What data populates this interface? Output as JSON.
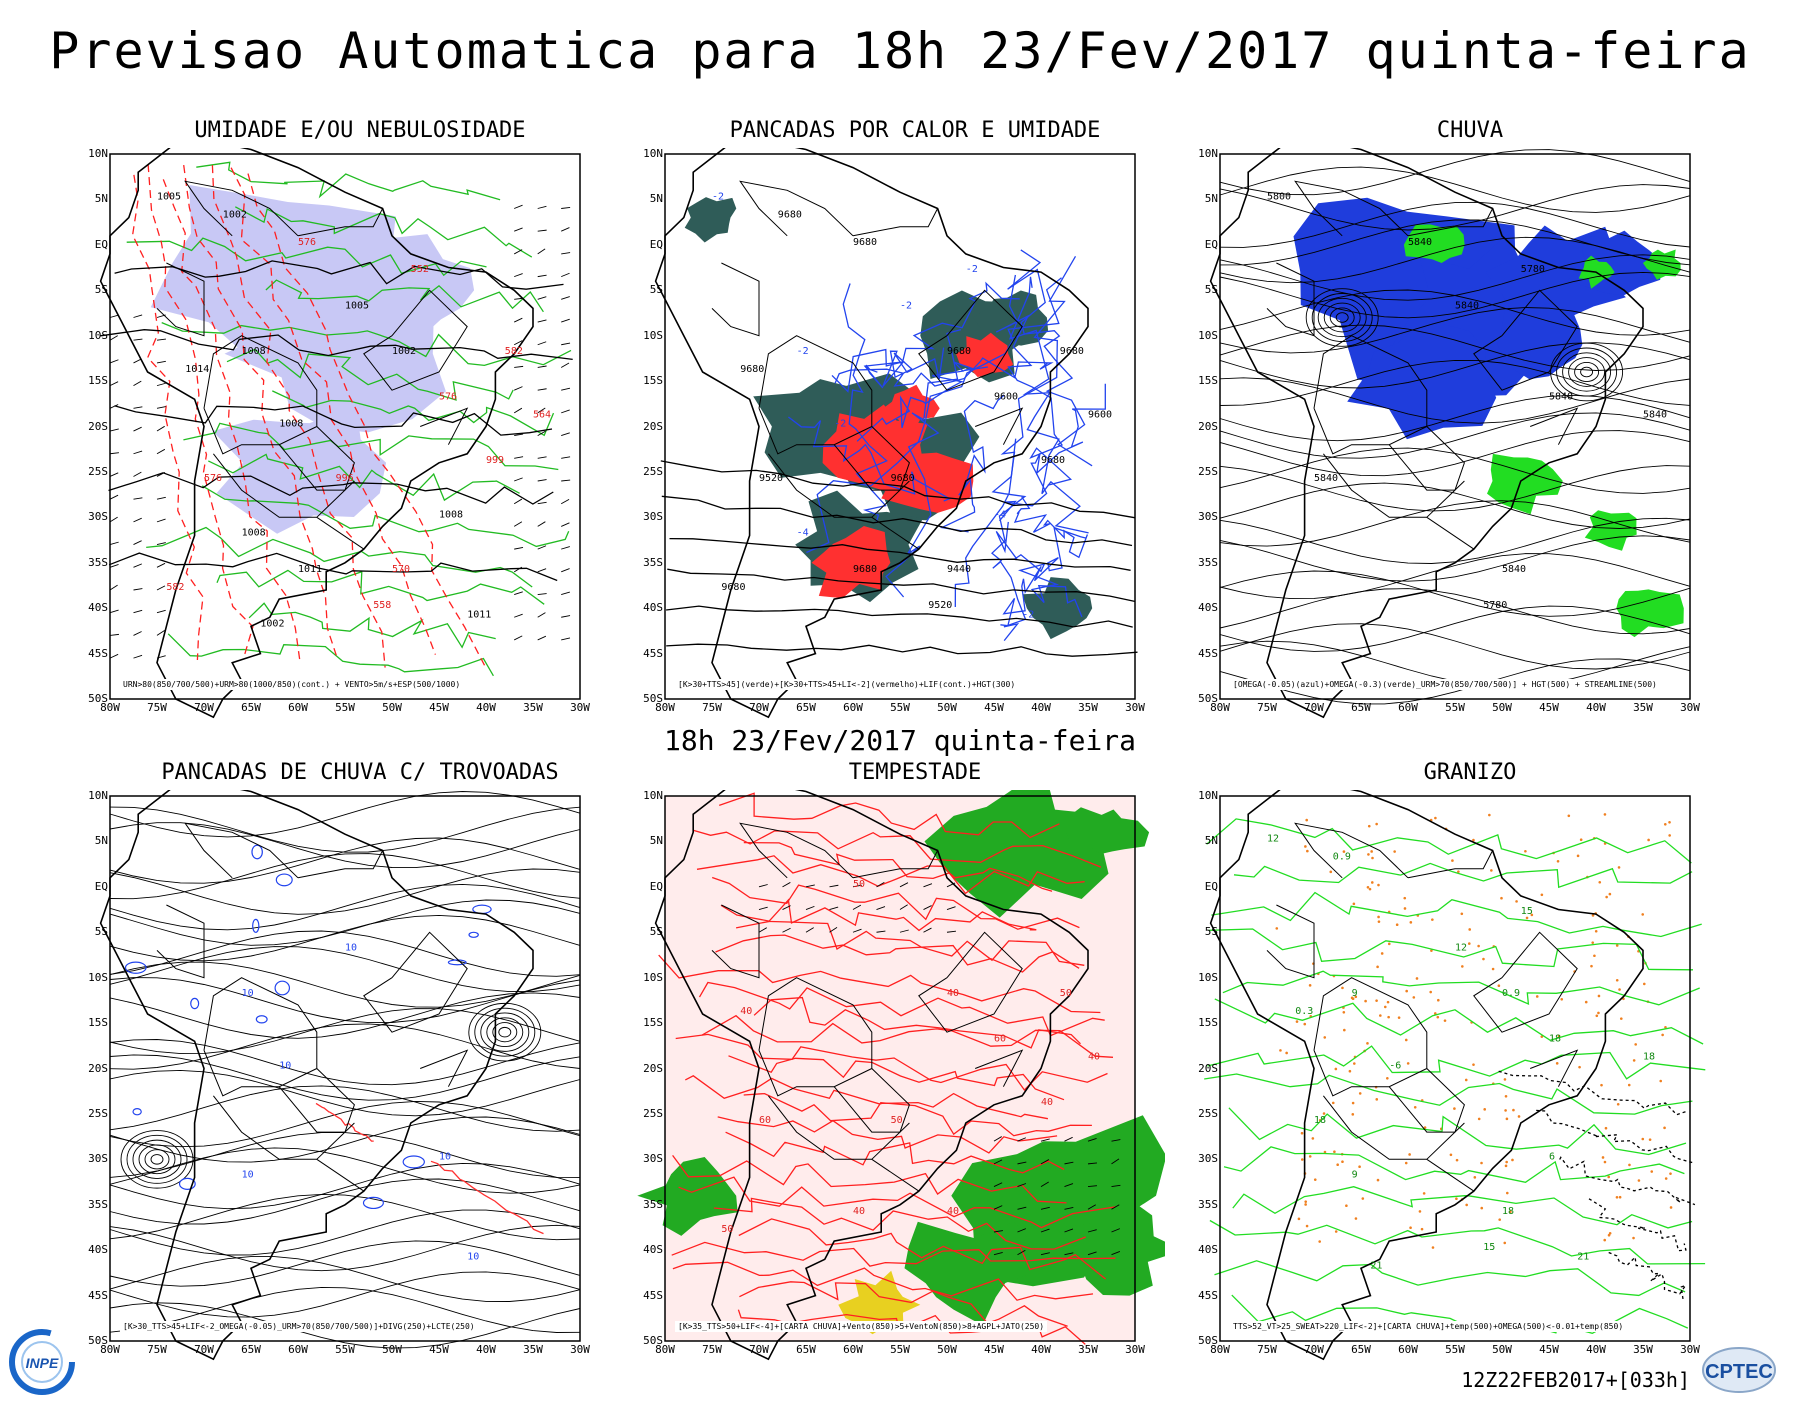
{
  "main_title": "Previsao Automatica  para 18h 23/Fev/2017 quinta-feira",
  "mid_title": "18h 23/Fev/2017 quinta-feira",
  "footer": "12Z22FEB2017+[033h]",
  "logos": {
    "left": "INPE",
    "right": "CPTEC"
  },
  "lat_labels": [
    "10N",
    "5N",
    "EQ",
    "5S",
    "10S",
    "15S",
    "20S",
    "25S",
    "30S",
    "35S",
    "40S",
    "45S",
    "50S"
  ],
  "lon_labels": [
    "80W",
    "75W",
    "70W",
    "65W",
    "60W",
    "55W",
    "50W",
    "45W",
    "40W",
    "35W",
    "30W"
  ],
  "colors": {
    "moist": "#c8c8f5",
    "humidity_contour": "#22bb22",
    "pressure_contour": "#000000",
    "thickness_contour": "#ff2020",
    "thunder_dark": "#2f5c58",
    "thunder_red": "#ff3030",
    "lif_blue": "#2244ee",
    "rain_blue": "#1f3ddc",
    "rain_green": "#22dd22",
    "storm_red": "#ff2020",
    "storm_green": "#22aa22",
    "storm_yellow": "#e8d020",
    "hail_orange": "#f08020"
  },
  "panels": [
    {
      "id": "umidade",
      "title": "UMIDADE E/OU NEBULOSIDADE",
      "caption": "URN>80(850/700/500)+URM>80(1000/850)(cont.) + VENTO>5m/s+ESP(500/1000)",
      "labels": [
        "1005",
        "1005",
        "1008",
        "1008",
        "1008",
        "1008",
        "1011",
        "1002",
        "1002",
        "1002",
        "1014",
        "1011",
        "999",
        "996",
        "582",
        "582",
        "576",
        "576",
        "576",
        "570",
        "564",
        "558",
        "552"
      ]
    },
    {
      "id": "pancadas_calor",
      "title": "PANCADAS POR CALOR E UMIDADE",
      "caption": "[K>30+TTS>45](verde)+[K>30+TTS>45+LI<-2](vermelho)+LIF(cont.)+HGT(300)",
      "labels": [
        "9680",
        "9680",
        "9680",
        "9680",
        "9680",
        "9680",
        "9680",
        "9680",
        "9680",
        "9600",
        "9520",
        "9440",
        "9600",
        "9520",
        "-2",
        "-2",
        "-2",
        "-2",
        "-4",
        "-4",
        "-2",
        "-2"
      ]
    },
    {
      "id": "chuva",
      "title": "CHUVA",
      "caption": "[OMEGA(-0.05)(azul)+OMEGA(-0.3)(verde)_URM>70(850/700/500)] + HGT(500) + STREAMLINE(500)",
      "labels": [
        "5840",
        "5840",
        "5840",
        "5840",
        "5840",
        "5780",
        "5780",
        "5800",
        "5840"
      ]
    },
    {
      "id": "pancadas_trovoadas",
      "title": "PANCADAS DE CHUVA C/ TROVOADAS",
      "caption": "[K>30_TTS>45+LIF<-2_OMEGA(-0.05)_URM>70(850/700/500)]+DIVG(250)+LCTE(250)",
      "labels": [
        "10",
        "10",
        "10",
        "10",
        "10",
        "10"
      ]
    },
    {
      "id": "tempestade",
      "title": "TEMPESTADE",
      "caption": "[K>35_TTS>50+LIF<-4]+[CARTA CHUVA]+Vento(850)>5+VentoN(850)>8+AGPL+JATO(250)",
      "labels": [
        "40",
        "40",
        "40",
        "40",
        "50",
        "50",
        "50",
        "50",
        "60",
        "60",
        "40",
        "40"
      ]
    },
    {
      "id": "granizo",
      "title": "GRANIZO",
      "caption": "TTS>52_VT>25_SWEAT>220_LIF<-2]+[CARTA CHUVA]+temp(500)+OMEGA(500)<-0.01+temp(850)",
      "labels": [
        "18",
        "18",
        "18",
        "18",
        "15",
        "15",
        "12",
        "12",
        "9",
        "9",
        "6",
        "-6",
        "21",
        "21",
        "0.9",
        "0.9",
        "0.3"
      ]
    }
  ]
}
